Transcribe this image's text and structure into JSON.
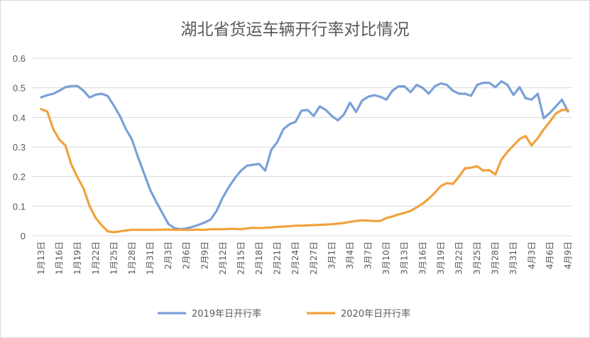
{
  "chart_data": {
    "type": "line",
    "title": "湖北省货运车辆开行率对比情况",
    "xlabel": "",
    "ylabel": "",
    "ylim": [
      0,
      0.6
    ],
    "yticks": [
      "0",
      "0.1",
      "0.2",
      "0.3",
      "0.4",
      "0.5",
      "0.6"
    ],
    "grid": true,
    "legend_position": "bottom",
    "x_tick_labels": [
      "1月13日",
      "1月16日",
      "1月19日",
      "1月22日",
      "1月25日",
      "1月28日",
      "1月31日",
      "2月3日",
      "2月6日",
      "2月9日",
      "2月12日",
      "2月15日",
      "2月18日",
      "2月21日",
      "2月24日",
      "2月27日",
      "3月1日",
      "3月4日",
      "3月7日",
      "3月10日",
      "3月13日",
      "3月16日",
      "3月19日",
      "3月22日",
      "3月25日",
      "3月28日",
      "3月31日",
      "4月3日",
      "4月6日",
      "4月9日"
    ],
    "x_tick_every_days": 3,
    "series": [
      {
        "name": "2019年日开行率",
        "color": "#7aa0d8",
        "values": [
          0.468,
          0.475,
          0.48,
          0.49,
          0.502,
          0.506,
          0.506,
          0.49,
          0.467,
          0.477,
          0.48,
          0.472,
          0.44,
          0.405,
          0.36,
          0.325,
          0.265,
          0.21,
          0.155,
          0.115,
          0.077,
          0.04,
          0.026,
          0.022,
          0.025,
          0.03,
          0.037,
          0.045,
          0.055,
          0.085,
          0.13,
          0.165,
          0.195,
          0.22,
          0.237,
          0.24,
          0.243,
          0.22,
          0.29,
          0.317,
          0.36,
          0.377,
          0.385,
          0.423,
          0.425,
          0.405,
          0.437,
          0.425,
          0.405,
          0.39,
          0.41,
          0.45,
          0.418,
          0.457,
          0.47,
          0.475,
          0.47,
          0.46,
          0.49,
          0.505,
          0.505,
          0.485,
          0.51,
          0.5,
          0.48,
          0.505,
          0.515,
          0.51,
          0.49,
          0.48,
          0.48,
          0.473,
          0.51,
          0.517,
          0.517,
          0.502,
          0.522,
          0.51,
          0.476,
          0.502,
          0.465,
          0.46,
          0.48,
          0.397,
          0.415,
          0.437,
          0.46,
          0.42
        ]
      },
      {
        "name": "2020年日开行率",
        "color": "#f0a23c",
        "values": [
          0.428,
          0.42,
          0.36,
          0.325,
          0.305,
          0.24,
          0.197,
          0.16,
          0.1,
          0.06,
          0.035,
          0.015,
          0.012,
          0.015,
          0.018,
          0.02,
          0.02,
          0.02,
          0.02,
          0.02,
          0.021,
          0.021,
          0.02,
          0.02,
          0.02,
          0.02,
          0.021,
          0.02,
          0.022,
          0.022,
          0.022,
          0.023,
          0.023,
          0.022,
          0.025,
          0.027,
          0.026,
          0.027,
          0.028,
          0.03,
          0.031,
          0.032,
          0.034,
          0.034,
          0.035,
          0.036,
          0.037,
          0.038,
          0.039,
          0.041,
          0.043,
          0.047,
          0.05,
          0.052,
          0.051,
          0.05,
          0.05,
          0.06,
          0.065,
          0.072,
          0.077,
          0.084,
          0.096,
          0.108,
          0.125,
          0.145,
          0.168,
          0.178,
          0.175,
          0.2,
          0.228,
          0.23,
          0.235,
          0.22,
          0.222,
          0.207,
          0.257,
          0.284,
          0.305,
          0.327,
          0.337,
          0.305,
          0.33,
          0.36,
          0.385,
          0.413,
          0.425,
          0.425
        ]
      }
    ]
  }
}
